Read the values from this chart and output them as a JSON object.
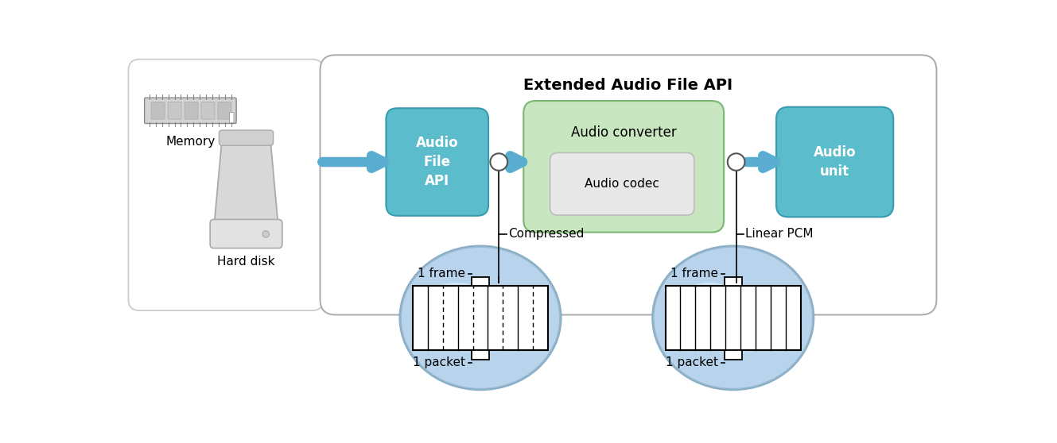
{
  "title": "Extended Audio File API",
  "bg_color": "#ffffff",
  "memory_label": "Memory",
  "harddisk_label": "Hard disk",
  "audio_converter_label": "Audio converter",
  "audio_codec_label": "Audio codec",
  "compressed_label": "Compressed",
  "linear_pcm_label": "Linear PCM",
  "frame_label": "1 frame",
  "packet_label": "1 packet",
  "teal_color": "#5bbccc",
  "green_bg": "#c8e6c0",
  "green_border": "#7ab870",
  "codec_bg": "#e8e8e8",
  "arrow_color": "#5aadd0",
  "ellipse_outer": "#8ab8d8",
  "ellipse_inner_light": "#ddeeff",
  "ellipse_main": "#b0cfe8",
  "line_color": "#333333",
  "box_border": "#aaaaaa",
  "left_box_border": "#cccccc",
  "outer_box_border": "#aaaaaa"
}
